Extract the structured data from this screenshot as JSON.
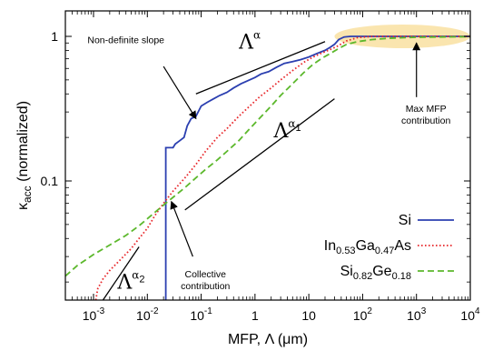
{
  "chart_data": {
    "type": "line",
    "xscale": "log",
    "yscale": "log",
    "xlim": [
      0.0003,
      10000
    ],
    "ylim": [
      0.015,
      1.5
    ],
    "grid": false,
    "legend_position": "bottom-right",
    "xlabel": "MFP, Λ (μm)",
    "ylabel": "κ",
    "ylabel_sub": "acc",
    "ylabel_suffix": "(normalized)",
    "x_ticks": [
      {
        "value": 0.001,
        "base": "10",
        "exp": "-3"
      },
      {
        "value": 0.01,
        "base": "10",
        "exp": "-2"
      },
      {
        "value": 0.1,
        "base": "10",
        "exp": "-1"
      },
      {
        "value": 1,
        "base": "1",
        "exp": ""
      },
      {
        "value": 10,
        "base": "10",
        "exp": ""
      },
      {
        "value": 100,
        "base": "10",
        "exp": "2"
      },
      {
        "value": 1000,
        "base": "10",
        "exp": "3"
      },
      {
        "value": 10000,
        "base": "10",
        "exp": "4"
      }
    ],
    "y_ticks": [
      {
        "value": 0.1,
        "label": "0.1"
      },
      {
        "value": 1,
        "label": "1"
      }
    ],
    "series": [
      {
        "name": "Si",
        "name_parts": [],
        "color": "#2b3fb0",
        "style": "solid",
        "points": [
          [
            0.022,
            0.015
          ],
          [
            0.022,
            0.17
          ],
          [
            0.03,
            0.17
          ],
          [
            0.033,
            0.18
          ],
          [
            0.04,
            0.19
          ],
          [
            0.048,
            0.2
          ],
          [
            0.055,
            0.24
          ],
          [
            0.065,
            0.27
          ],
          [
            0.08,
            0.28
          ],
          [
            0.1,
            0.33
          ],
          [
            0.13,
            0.35
          ],
          [
            0.17,
            0.37
          ],
          [
            0.22,
            0.39
          ],
          [
            0.3,
            0.41
          ],
          [
            0.4,
            0.44
          ],
          [
            0.55,
            0.47
          ],
          [
            0.7,
            0.49
          ],
          [
            1,
            0.52
          ],
          [
            1.3,
            0.55
          ],
          [
            1.8,
            0.57
          ],
          [
            2.5,
            0.61
          ],
          [
            3.5,
            0.65
          ],
          [
            5,
            0.67
          ],
          [
            7,
            0.69
          ],
          [
            10,
            0.72
          ],
          [
            14,
            0.76
          ],
          [
            20,
            0.8
          ],
          [
            25,
            0.84
          ],
          [
            30,
            0.88
          ],
          [
            36,
            0.95
          ],
          [
            45,
            0.99
          ],
          [
            60,
            1
          ],
          [
            100,
            1
          ],
          [
            1000,
            1
          ],
          [
            10000,
            1
          ]
        ]
      },
      {
        "name": "",
        "name_parts": [
          {
            "t": "In"
          },
          {
            "t": "0.53",
            "sub": true
          },
          {
            "t": "Ga"
          },
          {
            "t": "0.47",
            "sub": true
          },
          {
            "t": "As"
          }
        ],
        "color": "#e8282c",
        "style": "dotted",
        "points": [
          [
            0.0011,
            0.015
          ],
          [
            0.0012,
            0.018
          ],
          [
            0.0015,
            0.021
          ],
          [
            0.002,
            0.024
          ],
          [
            0.003,
            0.028
          ],
          [
            0.005,
            0.034
          ],
          [
            0.007,
            0.04
          ],
          [
            0.01,
            0.047
          ],
          [
            0.014,
            0.058
          ],
          [
            0.02,
            0.07
          ],
          [
            0.03,
            0.085
          ],
          [
            0.05,
            0.105
          ],
          [
            0.08,
            0.13
          ],
          [
            0.12,
            0.16
          ],
          [
            0.2,
            0.2
          ],
          [
            0.3,
            0.23
          ],
          [
            0.5,
            0.28
          ],
          [
            0.8,
            0.33
          ],
          [
            1.2,
            0.38
          ],
          [
            2,
            0.44
          ],
          [
            3,
            0.5
          ],
          [
            5,
            0.58
          ],
          [
            8,
            0.66
          ],
          [
            12,
            0.72
          ],
          [
            18,
            0.77
          ],
          [
            25,
            0.81
          ],
          [
            35,
            0.86
          ],
          [
            50,
            0.93
          ],
          [
            80,
            0.98
          ],
          [
            150,
            1
          ],
          [
            1000,
            1
          ],
          [
            10000,
            1
          ]
        ]
      },
      {
        "name": "",
        "name_parts": [
          {
            "t": "Si"
          },
          {
            "t": "0.82",
            "sub": true
          },
          {
            "t": "Ge"
          },
          {
            "t": "0.18",
            "sub": true
          }
        ],
        "color": "#5cb82c",
        "style": "dashed",
        "points": [
          [
            0.0003,
            0.022
          ],
          [
            0.0005,
            0.026
          ],
          [
            0.001,
            0.031
          ],
          [
            0.002,
            0.036
          ],
          [
            0.004,
            0.042
          ],
          [
            0.007,
            0.049
          ],
          [
            0.012,
            0.058
          ],
          [
            0.02,
            0.068
          ],
          [
            0.03,
            0.077
          ],
          [
            0.05,
            0.09
          ],
          [
            0.08,
            0.105
          ],
          [
            0.12,
            0.12
          ],
          [
            0.2,
            0.14
          ],
          [
            0.3,
            0.16
          ],
          [
            0.5,
            0.19
          ],
          [
            0.8,
            0.23
          ],
          [
            1.2,
            0.27
          ],
          [
            2,
            0.33
          ],
          [
            3,
            0.39
          ],
          [
            5,
            0.47
          ],
          [
            8,
            0.56
          ],
          [
            12,
            0.64
          ],
          [
            18,
            0.71
          ],
          [
            25,
            0.76
          ],
          [
            35,
            0.82
          ],
          [
            50,
            0.88
          ],
          [
            80,
            0.92
          ],
          [
            150,
            0.95
          ],
          [
            300,
            0.97
          ],
          [
            1000,
            0.985
          ],
          [
            3000,
            0.99
          ],
          [
            10000,
            0.995
          ]
        ]
      }
    ],
    "slope_lines": [
      {
        "from": [
          0.08,
          0.4
        ],
        "to": [
          20,
          0.92
        ],
        "label": "α",
        "label_sub": "",
        "label_at": [
          0.8,
          0.82
        ]
      },
      {
        "from": [
          0.05,
          0.063
        ],
        "to": [
          30,
          0.37
        ],
        "label": "α",
        "label_sub": "1",
        "label_at": [
          4,
          0.2
        ]
      },
      {
        "from": [
          0.0015,
          0.015
        ],
        "to": [
          0.007,
          0.035
        ],
        "label": "α",
        "label_sub": "2",
        "label_at": [
          0.005,
          0.018
        ]
      }
    ],
    "annotations": [
      {
        "lines": [
          "Non-definite slope"
        ],
        "text_at": [
          0.004,
          0.9
        ],
        "arrow_from": [
          0.02,
          0.62
        ],
        "arrow_to": [
          0.08,
          0.27
        ]
      },
      {
        "lines": [
          "Collective",
          "contribution"
        ],
        "text_at": [
          0.12,
          0.0215
        ],
        "arrow_from": [
          0.07,
          0.03
        ],
        "arrow_to": [
          0.028,
          0.072
        ]
      },
      {
        "lines": [
          "Max MFP",
          "contribution"
        ],
        "text_at": [
          1500,
          0.3
        ],
        "arrow_from": [
          1000,
          0.38
        ],
        "arrow_to": [
          1000,
          0.9
        ]
      }
    ],
    "highlight": {
      "x_range": [
        30,
        10000
      ],
      "y_center": 1
    }
  }
}
